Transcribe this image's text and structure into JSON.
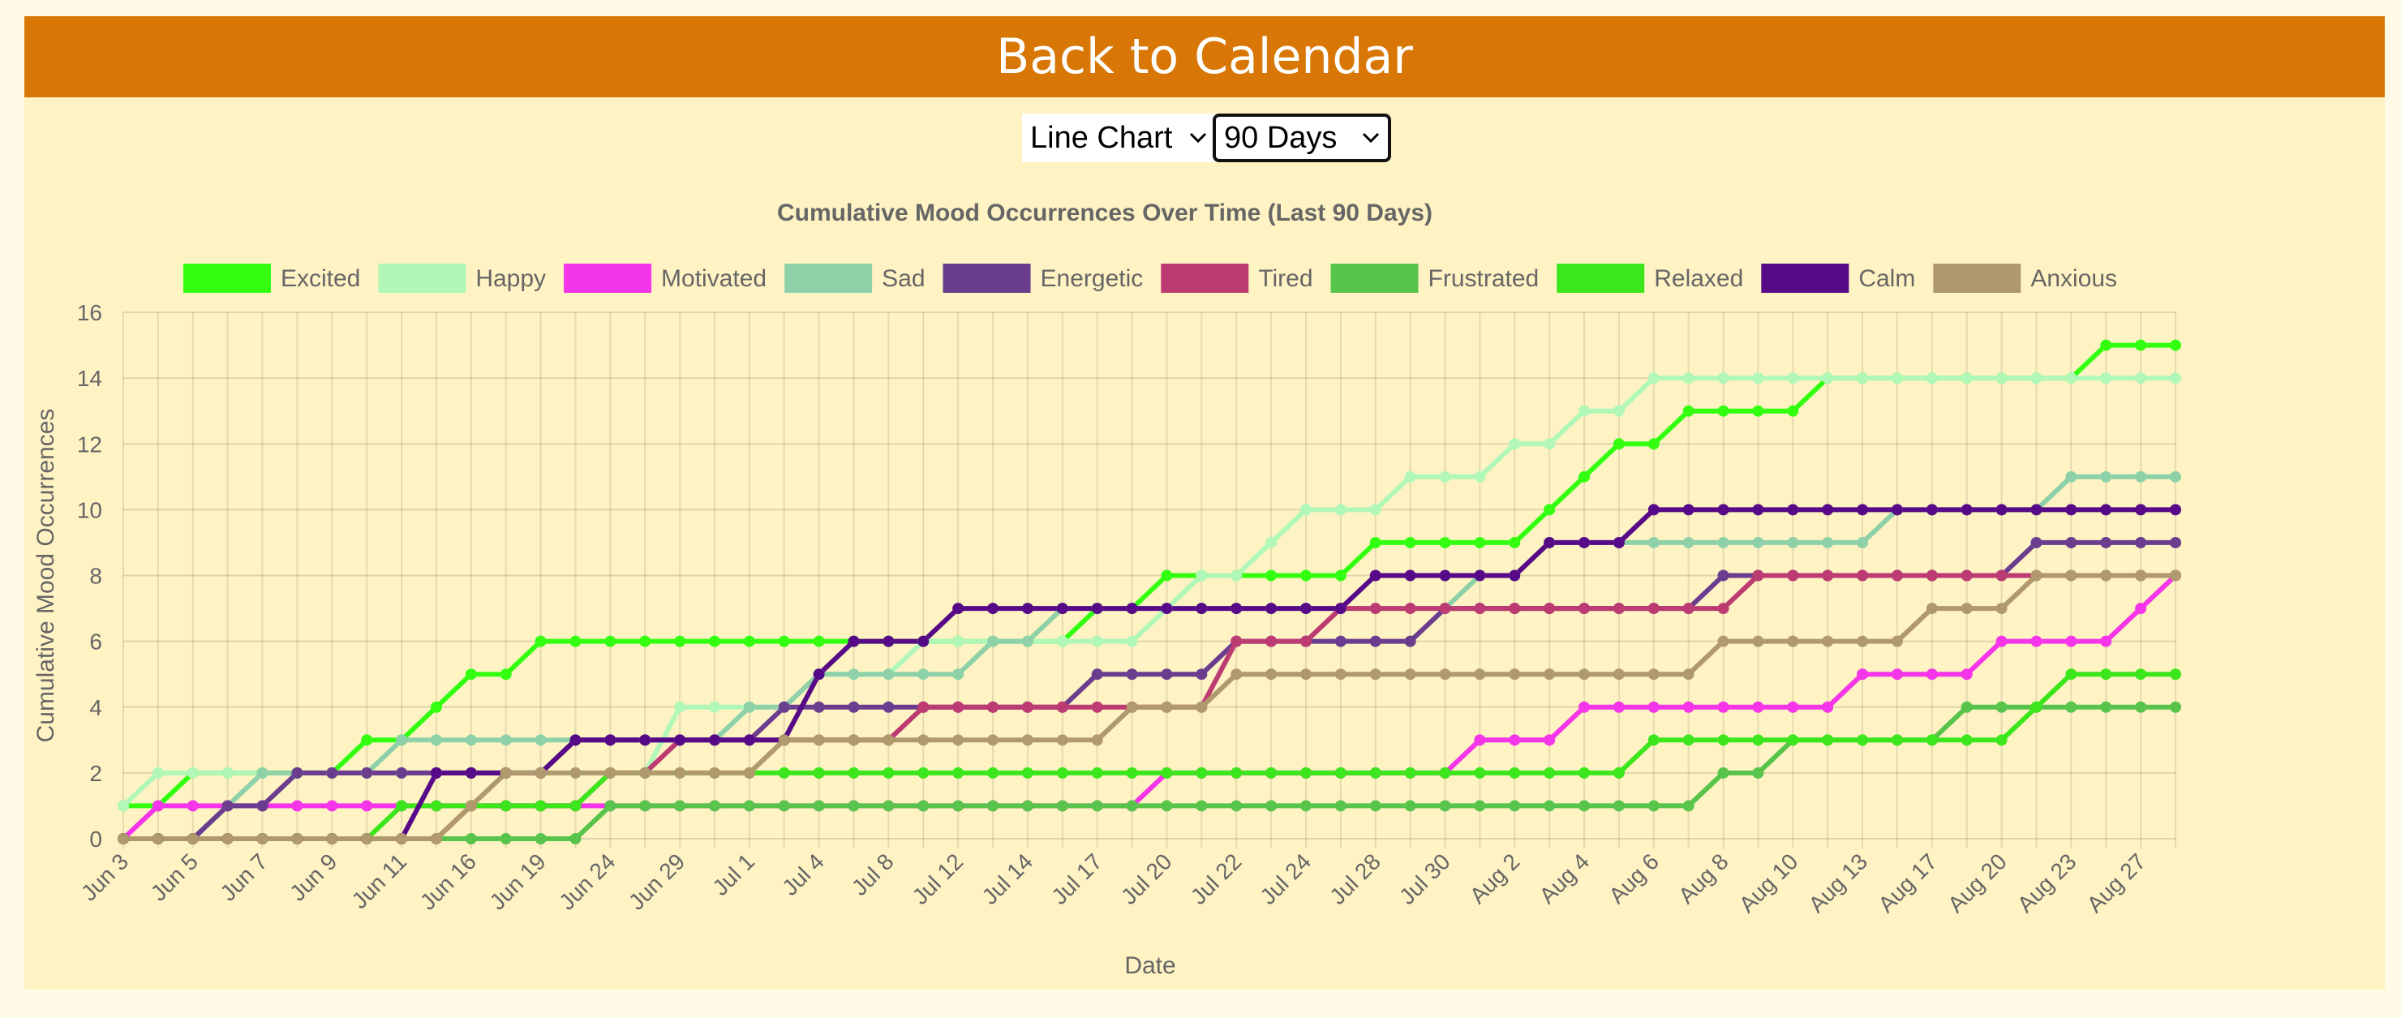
{
  "header": {
    "back_label": "Back to Calendar"
  },
  "controls": {
    "chart_type": "Line Chart",
    "range": "90 Days"
  },
  "chart_data": {
    "type": "line",
    "title": "Cumulative Mood Occurrences Over Time (Last 90 Days)",
    "xlabel": "Date",
    "ylabel": "Cumulative Mood Occurrences",
    "ylim": [
      0,
      16
    ],
    "yticks": [
      0,
      2,
      4,
      6,
      8,
      10,
      12,
      14,
      16
    ],
    "grid": true,
    "legend": "top",
    "x": [
      "Jun 3",
      "Jun 4",
      "Jun 5",
      "Jun 6",
      "Jun 7",
      "Jun 8",
      "Jun 9",
      "Jun 10",
      "Jun 11",
      "Jun 12",
      "Jun 16",
      "Jun 17",
      "Jun 19",
      "Jun 20",
      "Jun 24",
      "Jun 25",
      "Jun 29",
      "Jun 30",
      "Jul 1",
      "Jul 2",
      "Jul 4",
      "Jul 5",
      "Jul 8",
      "Jul 9",
      "Jul 12",
      "Jul 13",
      "Jul 14",
      "Jul 15",
      "Jul 17",
      "Jul 18",
      "Jul 20",
      "Jul 21",
      "Jul 22",
      "Jul 23",
      "Jul 24",
      "Jul 26",
      "Jul 28",
      "Jul 29",
      "Jul 30",
      "Jul 31",
      "Aug 2",
      "Aug 3",
      "Aug 4",
      "Aug 5",
      "Aug 6",
      "Aug 7",
      "Aug 8",
      "Aug 9",
      "Aug 10",
      "Aug 12",
      "Aug 13",
      "Aug 15",
      "Aug 17",
      "Aug 19",
      "Aug 20",
      "Aug 22",
      "Aug 23",
      "Aug 25",
      "Aug 27",
      "Aug 28"
    ],
    "series": [
      {
        "name": "Excited",
        "color": "#33ff11",
        "values": [
          1,
          1,
          2,
          2,
          2,
          2,
          2,
          3,
          3,
          4,
          5,
          5,
          6,
          6,
          6,
          6,
          6,
          6,
          6,
          6,
          6,
          6,
          6,
          6,
          6,
          6,
          6,
          6,
          7,
          7,
          8,
          8,
          8,
          8,
          8,
          8,
          9,
          9,
          9,
          9,
          9,
          10,
          11,
          12,
          12,
          13,
          13,
          13,
          13,
          14,
          14,
          14,
          14,
          14,
          14,
          14,
          14,
          15,
          15,
          15
        ]
      },
      {
        "name": "Happy",
        "color": "#b0f7b8",
        "values": [
          1,
          2,
          2,
          2,
          2,
          2,
          2,
          2,
          2,
          2,
          2,
          2,
          2,
          2,
          2,
          2,
          4,
          4,
          4,
          4,
          5,
          5,
          5,
          6,
          6,
          6,
          6,
          6,
          6,
          6,
          7,
          8,
          8,
          9,
          10,
          10,
          10,
          11,
          11,
          11,
          12,
          12,
          13,
          13,
          14,
          14,
          14,
          14,
          14,
          14,
          14,
          14,
          14,
          14,
          14,
          14,
          14,
          14,
          14,
          14
        ]
      },
      {
        "name": "Motivated",
        "color": "#f435e9",
        "values": [
          0,
          1,
          1,
          1,
          1,
          1,
          1,
          1,
          1,
          1,
          1,
          1,
          1,
          1,
          1,
          1,
          1,
          1,
          1,
          1,
          1,
          1,
          1,
          1,
          1,
          1,
          1,
          1,
          1,
          1,
          2,
          2,
          2,
          2,
          2,
          2,
          2,
          2,
          2,
          3,
          3,
          3,
          4,
          4,
          4,
          4,
          4,
          4,
          4,
          4,
          5,
          5,
          5,
          5,
          6,
          6,
          6,
          6,
          7,
          8
        ]
      },
      {
        "name": "Sad",
        "color": "#8ed1a8",
        "values": [
          0,
          0,
          0,
          1,
          2,
          2,
          2,
          2,
          3,
          3,
          3,
          3,
          3,
          3,
          3,
          3,
          3,
          3,
          4,
          4,
          5,
          5,
          5,
          5,
          5,
          6,
          6,
          7,
          7,
          7,
          7,
          7,
          7,
          7,
          7,
          7,
          7,
          7,
          7,
          8,
          8,
          9,
          9,
          9,
          9,
          9,
          9,
          9,
          9,
          9,
          9,
          10,
          10,
          10,
          10,
          10,
          11,
          11,
          11,
          11
        ]
      },
      {
        "name": "Energetic",
        "color": "#6b3d8f",
        "values": [
          0,
          0,
          0,
          1,
          1,
          2,
          2,
          2,
          2,
          2,
          2,
          2,
          2,
          3,
          3,
          3,
          3,
          3,
          3,
          4,
          4,
          4,
          4,
          4,
          4,
          4,
          4,
          4,
          5,
          5,
          5,
          5,
          6,
          6,
          6,
          6,
          6,
          6,
          7,
          7,
          7,
          7,
          7,
          7,
          7,
          7,
          8,
          8,
          8,
          8,
          8,
          8,
          8,
          8,
          8,
          9,
          9,
          9,
          9,
          9
        ]
      },
      {
        "name": "Tired",
        "color": "#bd3b73",
        "values": [
          0,
          0,
          0,
          0,
          0,
          0,
          0,
          0,
          0,
          0,
          1,
          1,
          1,
          1,
          2,
          2,
          3,
          3,
          3,
          3,
          3,
          3,
          3,
          4,
          4,
          4,
          4,
          4,
          4,
          4,
          4,
          4,
          6,
          6,
          6,
          7,
          7,
          7,
          7,
          7,
          7,
          7,
          7,
          7,
          7,
          7,
          7,
          8,
          8,
          8,
          8,
          8,
          8,
          8,
          8,
          8,
          8,
          8,
          8,
          8
        ]
      },
      {
        "name": "Frustrated",
        "color": "#58c44c",
        "values": [
          0,
          0,
          0,
          0,
          0,
          0,
          0,
          0,
          0,
          0,
          0,
          0,
          0,
          0,
          1,
          1,
          1,
          1,
          1,
          1,
          1,
          1,
          1,
          1,
          1,
          1,
          1,
          1,
          1,
          1,
          1,
          1,
          1,
          1,
          1,
          1,
          1,
          1,
          1,
          1,
          1,
          1,
          1,
          1,
          1,
          1,
          2,
          2,
          3,
          3,
          3,
          3,
          3,
          4,
          4,
          4,
          4,
          4,
          4,
          4
        ]
      },
      {
        "name": "Relaxed",
        "color": "#3ce61c",
        "values": [
          0,
          0,
          0,
          0,
          0,
          0,
          0,
          0,
          1,
          1,
          1,
          1,
          1,
          1,
          2,
          2,
          2,
          2,
          2,
          2,
          2,
          2,
          2,
          2,
          2,
          2,
          2,
          2,
          2,
          2,
          2,
          2,
          2,
          2,
          2,
          2,
          2,
          2,
          2,
          2,
          2,
          2,
          2,
          2,
          3,
          3,
          3,
          3,
          3,
          3,
          3,
          3,
          3,
          3,
          3,
          4,
          5,
          5,
          5,
          5
        ]
      },
      {
        "name": "Calm",
        "color": "#570a87",
        "values": [
          0,
          0,
          0,
          0,
          0,
          0,
          0,
          0,
          0,
          2,
          2,
          2,
          2,
          3,
          3,
          3,
          3,
          3,
          3,
          3,
          5,
          6,
          6,
          6,
          7,
          7,
          7,
          7,
          7,
          7,
          7,
          7,
          7,
          7,
          7,
          7,
          8,
          8,
          8,
          8,
          8,
          9,
          9,
          9,
          10,
          10,
          10,
          10,
          10,
          10,
          10,
          10,
          10,
          10,
          10,
          10,
          10,
          10,
          10,
          10
        ]
      },
      {
        "name": "Anxious",
        "color": "#b09a6d",
        "values": [
          0,
          0,
          0,
          0,
          0,
          0,
          0,
          0,
          0,
          0,
          1,
          2,
          2,
          2,
          2,
          2,
          2,
          2,
          2,
          3,
          3,
          3,
          3,
          3,
          3,
          3,
          3,
          3,
          3,
          4,
          4,
          4,
          5,
          5,
          5,
          5,
          5,
          5,
          5,
          5,
          5,
          5,
          5,
          5,
          5,
          5,
          6,
          6,
          6,
          6,
          6,
          6,
          7,
          7,
          7,
          8,
          8,
          8,
          8,
          8
        ]
      }
    ]
  }
}
